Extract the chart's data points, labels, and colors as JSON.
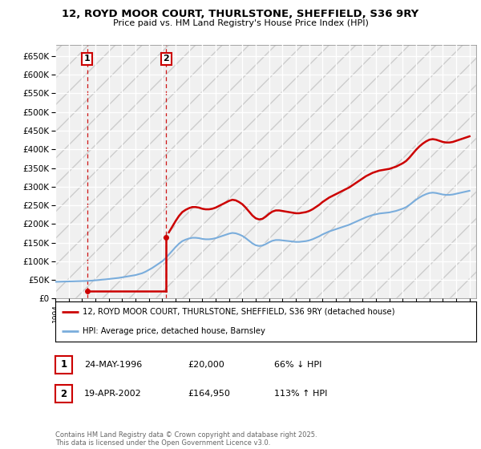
{
  "title": "12, ROYD MOOR COURT, THURLSTONE, SHEFFIELD, S36 9RY",
  "subtitle": "Price paid vs. HM Land Registry's House Price Index (HPI)",
  "legend_line1": "12, ROYD MOOR COURT, THURLSTONE, SHEFFIELD, S36 9RY (detached house)",
  "legend_line2": "HPI: Average price, detached house, Barnsley",
  "footnote": "Contains HM Land Registry data © Crown copyright and database right 2025.\nThis data is licensed under the Open Government Licence v3.0.",
  "sale1_label": "1",
  "sale1_date": "24-MAY-1996",
  "sale1_price": "£20,000",
  "sale1_hpi": "66% ↓ HPI",
  "sale2_label": "2",
  "sale2_date": "19-APR-2002",
  "sale2_price": "£164,950",
  "sale2_hpi": "113% ↑ HPI",
  "sale_color": "#cc0000",
  "hpi_color": "#7aaddc",
  "background_color": "#ffffff",
  "ylim": [
    0,
    680000
  ],
  "yticks": [
    0,
    50000,
    100000,
    150000,
    200000,
    250000,
    300000,
    350000,
    400000,
    450000,
    500000,
    550000,
    600000,
    650000
  ],
  "sale1_year": 1996.39,
  "sale1_price_val": 20000,
  "sale2_year": 2002.29,
  "sale2_price_val": 164950,
  "hpi_data": [
    [
      1994.0,
      45000
    ],
    [
      1994.25,
      45200
    ],
    [
      1994.5,
      45500
    ],
    [
      1994.75,
      45800
    ],
    [
      1995.0,
      46000
    ],
    [
      1995.25,
      46200
    ],
    [
      1995.5,
      46500
    ],
    [
      1995.75,
      46800
    ],
    [
      1996.0,
      47000
    ],
    [
      1996.25,
      47300
    ],
    [
      1996.5,
      47700
    ],
    [
      1996.75,
      48200
    ],
    [
      1997.0,
      49000
    ],
    [
      1997.25,
      49800
    ],
    [
      1997.5,
      50800
    ],
    [
      1997.75,
      51500
    ],
    [
      1998.0,
      52500
    ],
    [
      1998.25,
      53500
    ],
    [
      1998.5,
      54500
    ],
    [
      1998.75,
      55500
    ],
    [
      1999.0,
      57000
    ],
    [
      1999.25,
      58500
    ],
    [
      1999.5,
      60000
    ],
    [
      1999.75,
      61500
    ],
    [
      2000.0,
      63000
    ],
    [
      2000.25,
      65500
    ],
    [
      2000.5,
      68000
    ],
    [
      2000.75,
      72000
    ],
    [
      2001.0,
      77000
    ],
    [
      2001.25,
      82000
    ],
    [
      2001.5,
      88000
    ],
    [
      2001.75,
      94000
    ],
    [
      2002.0,
      100000
    ],
    [
      2002.25,
      108000
    ],
    [
      2002.5,
      118000
    ],
    [
      2002.75,
      128000
    ],
    [
      2003.0,
      138000
    ],
    [
      2003.25,
      147000
    ],
    [
      2003.5,
      154000
    ],
    [
      2003.75,
      158000
    ],
    [
      2004.0,
      161000
    ],
    [
      2004.25,
      163000
    ],
    [
      2004.5,
      163000
    ],
    [
      2004.75,
      162000
    ],
    [
      2005.0,
      160000
    ],
    [
      2005.25,
      159000
    ],
    [
      2005.5,
      159000
    ],
    [
      2005.75,
      160000
    ],
    [
      2006.0,
      162000
    ],
    [
      2006.25,
      165000
    ],
    [
      2006.5,
      168000
    ],
    [
      2006.75,
      171000
    ],
    [
      2007.0,
      174000
    ],
    [
      2007.25,
      176000
    ],
    [
      2007.5,
      175000
    ],
    [
      2007.75,
      172000
    ],
    [
      2008.0,
      168000
    ],
    [
      2008.25,
      162000
    ],
    [
      2008.5,
      155000
    ],
    [
      2008.75,
      148000
    ],
    [
      2009.0,
      143000
    ],
    [
      2009.25,
      141000
    ],
    [
      2009.5,
      142000
    ],
    [
      2009.75,
      146000
    ],
    [
      2010.0,
      151000
    ],
    [
      2010.25,
      155000
    ],
    [
      2010.5,
      157000
    ],
    [
      2010.75,
      157000
    ],
    [
      2011.0,
      156000
    ],
    [
      2011.25,
      155000
    ],
    [
      2011.5,
      154000
    ],
    [
      2011.75,
      153000
    ],
    [
      2012.0,
      152000
    ],
    [
      2012.25,
      152000
    ],
    [
      2012.5,
      153000
    ],
    [
      2012.75,
      154000
    ],
    [
      2013.0,
      156000
    ],
    [
      2013.25,
      159000
    ],
    [
      2013.5,
      163000
    ],
    [
      2013.75,
      167000
    ],
    [
      2014.0,
      172000
    ],
    [
      2014.25,
      176000
    ],
    [
      2014.5,
      180000
    ],
    [
      2014.75,
      183000
    ],
    [
      2015.0,
      186000
    ],
    [
      2015.25,
      189000
    ],
    [
      2015.5,
      192000
    ],
    [
      2015.75,
      195000
    ],
    [
      2016.0,
      198000
    ],
    [
      2016.25,
      202000
    ],
    [
      2016.5,
      206000
    ],
    [
      2016.75,
      210000
    ],
    [
      2017.0,
      214000
    ],
    [
      2017.25,
      218000
    ],
    [
      2017.5,
      221000
    ],
    [
      2017.75,
      224000
    ],
    [
      2018.0,
      226000
    ],
    [
      2018.25,
      228000
    ],
    [
      2018.5,
      229000
    ],
    [
      2018.75,
      230000
    ],
    [
      2019.0,
      231000
    ],
    [
      2019.25,
      233000
    ],
    [
      2019.5,
      235000
    ],
    [
      2019.75,
      238000
    ],
    [
      2020.0,
      241000
    ],
    [
      2020.25,
      245000
    ],
    [
      2020.5,
      251000
    ],
    [
      2020.75,
      258000
    ],
    [
      2021.0,
      265000
    ],
    [
      2021.25,
      271000
    ],
    [
      2021.5,
      276000
    ],
    [
      2021.75,
      280000
    ],
    [
      2022.0,
      283000
    ],
    [
      2022.25,
      284000
    ],
    [
      2022.5,
      283000
    ],
    [
      2022.75,
      281000
    ],
    [
      2023.0,
      279000
    ],
    [
      2023.25,
      278000
    ],
    [
      2023.5,
      278000
    ],
    [
      2023.75,
      279000
    ],
    [
      2024.0,
      281000
    ],
    [
      2024.25,
      283000
    ],
    [
      2024.5,
      285000
    ],
    [
      2024.75,
      287000
    ],
    [
      2025.0,
      289000
    ]
  ]
}
